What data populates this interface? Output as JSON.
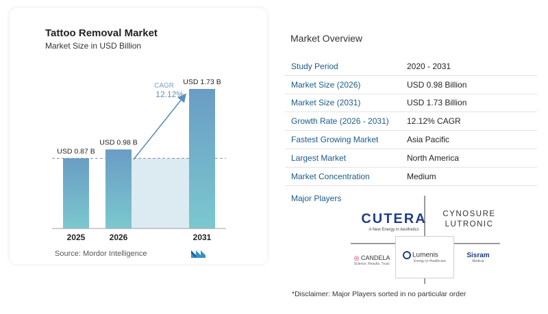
{
  "chart": {
    "title": "Tattoo Removal Market",
    "subtitle": "Market Size in USD Billion",
    "source": "Source:  Mordor Intelligence",
    "cagr_label": "CAGR",
    "cagr_value": "12.12%"
  },
  "chart_data": {
    "type": "bar",
    "categories": [
      "2025",
      "2026",
      "2031"
    ],
    "values": [
      0.87,
      0.98,
      1.73
    ],
    "data_labels": [
      "USD 0.87 B",
      "USD 0.98 B",
      "USD 1.73 B"
    ],
    "title": "Tattoo Removal Market",
    "subtitle": "Market Size in USD Billion",
    "xlabel": "",
    "ylabel": "",
    "ylim": [
      0,
      1.73
    ],
    "grid": false,
    "colors": {
      "bar_top": "#6a9cc4",
      "bar_bottom": "#7bc8cf",
      "area": "#d6e6ef",
      "arrow": "#5e8fb7"
    }
  },
  "overview": {
    "title": "Market Overview",
    "rows": [
      {
        "label": "Study Period",
        "value": "2020 - 2031"
      },
      {
        "label": "Market Size (2026)",
        "value": "USD 0.98 Billion"
      },
      {
        "label": "Market Size (2031)",
        "value": "USD 1.73 Billion"
      },
      {
        "label": "Growth Rate (2026 - 2031)",
        "value": "12.12% CAGR"
      },
      {
        "label": "Fastest Growing Market",
        "value": "Asia Pacific"
      },
      {
        "label": "Largest Market",
        "value": "North America"
      },
      {
        "label": "Market Concentration",
        "value": "Medium"
      }
    ]
  },
  "players": {
    "title": "Major Players",
    "cutera": "CUTERA",
    "cutera_tag": "A New Energy in Aesthetics",
    "cynosure_line1": "CYNOSURE",
    "cynosure_line2": "LUTRONIC",
    "candela": "CANDELA",
    "candela_tag": "Science. Results. Trust.",
    "lumenis": "Lumenis",
    "lumenis_tag": "Energy to Healthcare",
    "sisram": "Sisram",
    "sisram_tag": "Medical"
  },
  "disclaimer": "*Disclaimer: Major Players sorted in no particular order"
}
